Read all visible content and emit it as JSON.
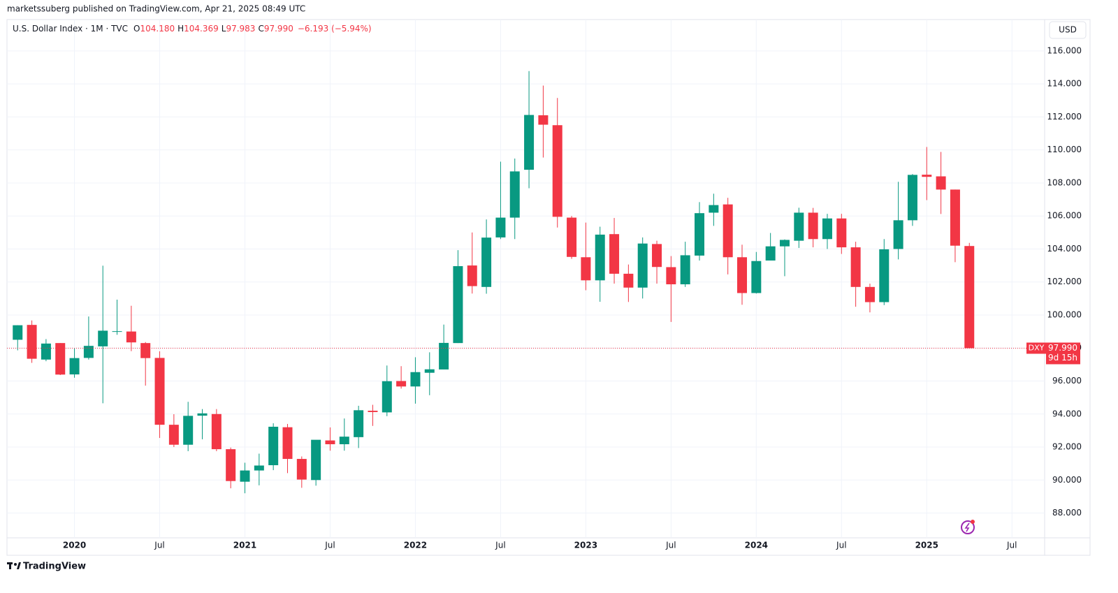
{
  "chart_data": {
    "type": "candlestick",
    "attribution": "marketssuberg published on TradingView.com, Apr 21, 2025 08:49 UTC",
    "symbol": "U.S. Dollar Index · 1M · TVC",
    "ohlc_header": [
      {
        "key": "O",
        "value": "104.180"
      },
      {
        "key": "H",
        "value": "104.369"
      },
      {
        "key": "L",
        "value": "97.983"
      },
      {
        "key": "C",
        "value": "97.990"
      }
    ],
    "change": "−6.193 (−5.94%)",
    "currency": "USD",
    "brand": "TradingView",
    "up_color": "#089981",
    "down_color": "#f23645",
    "open": [
      98.5,
      99.4,
      97.3,
      98.3,
      96.4,
      97.4,
      98.1,
      99.0,
      99.0,
      98.3,
      97.4,
      93.35,
      92.14,
      93.9,
      94.0,
      91.87,
      89.9,
      90.58,
      90.9,
      93.2,
      91.28,
      90.0,
      92.4,
      92.17,
      92.6,
      94.2,
      94.1,
      96.0,
      95.67,
      96.5,
      96.7,
      98.3,
      103.0,
      101.7,
      104.7,
      105.9,
      108.8,
      112.1,
      111.5,
      105.9,
      103.5,
      102.1,
      104.9,
      102.5,
      101.66,
      104.3,
      102.9,
      101.86,
      103.6,
      106.2,
      106.7,
      103.5,
      101.33,
      103.3,
      104.16,
      104.5,
      106.2,
      104.6,
      105.85,
      104.1,
      101.7,
      100.78,
      104.0,
      105.74,
      108.5,
      108.4,
      107.6,
      104.18
    ],
    "high": [
      99.38,
      99.67,
      98.54,
      98.3,
      97.99,
      99.91,
      102.99,
      100.93,
      100.56,
      98.36,
      97.8,
      93.99,
      94.74,
      94.3,
      94.3,
      91.97,
      91.05,
      91.6,
      93.44,
      93.4,
      91.43,
      92.4,
      93.19,
      93.73,
      94.5,
      94.56,
      96.94,
      96.9,
      97.44,
      97.74,
      99.42,
      103.93,
      105.0,
      105.79,
      109.29,
      109.48,
      114.78,
      113.9,
      113.15,
      106.0,
      105.6,
      105.35,
      105.88,
      103.06,
      104.7,
      104.5,
      103.57,
      104.44,
      106.84,
      107.35,
      107.1,
      104.26,
      103.82,
      104.97,
      104.58,
      106.5,
      106.49,
      106.13,
      106.13,
      104.44,
      101.9,
      104.6,
      108.07,
      108.54,
      110.18,
      109.88,
      107.6,
      104.369
    ],
    "low": [
      97.86,
      97.1,
      97.2,
      96.36,
      96.2,
      97.3,
      94.65,
      98.8,
      97.81,
      95.72,
      92.55,
      92.0,
      91.75,
      92.47,
      91.75,
      89.5,
      89.2,
      89.68,
      90.6,
      90.42,
      89.53,
      89.66,
      91.78,
      91.78,
      91.94,
      93.28,
      93.87,
      95.54,
      94.63,
      95.14,
      96.7,
      98.3,
      101.3,
      101.29,
      104.6,
      104.6,
      107.68,
      109.54,
      105.3,
      103.4,
      101.5,
      100.8,
      101.9,
      100.79,
      101.0,
      101.9,
      99.58,
      101.7,
      103.3,
      105.4,
      102.46,
      100.62,
      101.3,
      103.3,
      102.35,
      104.06,
      104.1,
      104.0,
      103.7,
      100.5,
      100.16,
      100.6,
      103.37,
      105.4,
      106.96,
      106.12,
      103.2,
      97.983
    ],
    "close": [
      99.38,
      97.35,
      98.27,
      96.39,
      97.39,
      98.13,
      99.05,
      99.02,
      98.34,
      97.39,
      93.35,
      92.14,
      93.89,
      94.04,
      91.87,
      89.94,
      90.58,
      90.88,
      93.23,
      91.28,
      90.03,
      92.44,
      92.17,
      92.63,
      94.23,
      94.12,
      95.99,
      95.67,
      96.54,
      96.71,
      98.31,
      102.96,
      101.75,
      104.69,
      105.9,
      108.7,
      112.12,
      111.53,
      105.95,
      103.52,
      102.1,
      104.87,
      102.5,
      101.66,
      104.33,
      102.91,
      101.86,
      103.62,
      106.17,
      106.66,
      103.5,
      101.33,
      103.27,
      104.16,
      104.55,
      106.2,
      104.6,
      105.85,
      104.1,
      101.7,
      100.78,
      103.98,
      105.74,
      108.49,
      108.37,
      107.6,
      104.2,
      97.99
    ],
    "xlim": [
      -0.75,
      72.3
    ],
    "xticks": [
      {
        "value": 4,
        "label": "2020"
      },
      {
        "value": 10,
        "label": "Jul"
      },
      {
        "value": 16,
        "label": "2021"
      },
      {
        "value": 22,
        "label": "Jul"
      },
      {
        "value": 28,
        "label": "2022"
      },
      {
        "value": 34,
        "label": "Jul"
      },
      {
        "value": 40,
        "label": "2023"
      },
      {
        "value": 46,
        "label": "Jul"
      },
      {
        "value": 52,
        "label": "2024"
      },
      {
        "value": 58,
        "label": "Jul"
      },
      {
        "value": 64,
        "label": "2025"
      },
      {
        "value": 70,
        "label": "Jul"
      }
    ],
    "ylim": [
      86.5,
      117.9
    ],
    "yticks": [
      {
        "value": 88,
        "label": "88.000"
      },
      {
        "value": 90,
        "label": "90.000"
      },
      {
        "value": 92,
        "label": "92.000"
      },
      {
        "value": 94,
        "label": "94.000"
      },
      {
        "value": 96,
        "label": "96.000"
      },
      {
        "value": 98,
        "label": "98.000"
      },
      {
        "value": 100,
        "label": "100.000"
      },
      {
        "value": 102,
        "label": "102.000"
      },
      {
        "value": 104,
        "label": "104.000"
      },
      {
        "value": 106,
        "label": "106.000"
      },
      {
        "value": 108,
        "label": "108.000"
      },
      {
        "value": 110,
        "label": "110.000"
      },
      {
        "value": 112,
        "label": "112.000"
      },
      {
        "value": 114,
        "label": "114.000"
      },
      {
        "value": 116,
        "label": "116.000"
      }
    ],
    "grid": true,
    "price_line": {
      "value": 97.99,
      "label": "97.990",
      "symbol": "DXY",
      "countdown": "9d 15h"
    }
  }
}
